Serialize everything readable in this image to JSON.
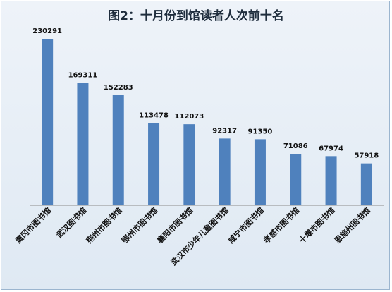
{
  "chart_data": {
    "type": "bar",
    "title": "图2：十月份到馆读者人次前十名",
    "xlabel": "",
    "ylabel": "",
    "ylim": [
      0,
      230291
    ],
    "grid": false,
    "legend": "none",
    "bar_color": "#4f81bd",
    "categories": [
      "黄冈市图书馆",
      "武汉图书馆",
      "荆州市图书馆",
      "鄂州市图书馆",
      "襄阳市图书馆",
      "武汉市少年儿童图书馆",
      "咸宁市图书馆",
      "孝感市图书馆",
      "十堰市图书馆",
      "恩施州图书馆"
    ],
    "values": [
      230291,
      169311,
      152283,
      113478,
      112073,
      92317,
      91350,
      71086,
      67974,
      57918
    ],
    "data_labels": [
      "230291",
      "169311",
      "152283",
      "113478",
      "112073",
      "92317",
      "91350",
      "71086",
      "67974",
      "57918"
    ]
  }
}
